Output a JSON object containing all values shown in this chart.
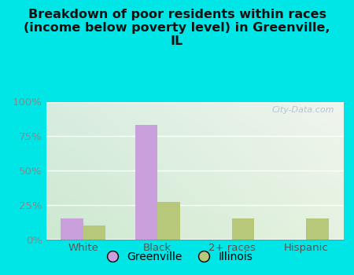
{
  "title": "Breakdown of poor residents within races\n(income below poverty level) in Greenville,\nIL",
  "categories": [
    "White",
    "Black",
    "2+ races",
    "Hispanic"
  ],
  "greenville_values": [
    15,
    83,
    0,
    0
  ],
  "illinois_values": [
    10,
    27,
    15,
    15
  ],
  "greenville_color": "#c9a0dc",
  "illinois_color": "#b8c87a",
  "plot_bg_topleft": "#d8ede0",
  "plot_bg_topright": "#f0f5ee",
  "plot_bg_bottom": "#cde8d0",
  "title_color": "#111111",
  "title_fontsize": 11.5,
  "tick_fontsize": 9.5,
  "legend_fontsize": 10,
  "ylim": [
    0,
    100
  ],
  "yticks": [
    0,
    25,
    50,
    75,
    100
  ],
  "ytick_labels": [
    "0%",
    "25%",
    "50%",
    "75%",
    "100%"
  ],
  "watermark": "City-Data.com",
  "bar_width": 0.3,
  "outer_bg": "#00e5e5"
}
